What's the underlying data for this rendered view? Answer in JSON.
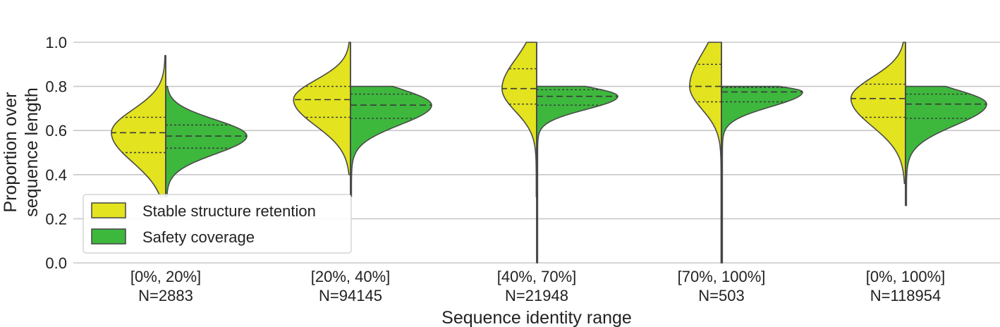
{
  "chart_data": {
    "type": "violin",
    "ylabel_lines": [
      "Proportion over",
      "sequence length"
    ],
    "xlabel": "Sequence identity range",
    "ylim": [
      0.0,
      1.0
    ],
    "yticks": [
      "0.0",
      "0.2",
      "0.4",
      "0.6",
      "0.8",
      "1.0"
    ],
    "grid": "horizontal",
    "legend_position": "lower-left",
    "categories": [
      {
        "range": "[0%, 20%]",
        "n": "N=2883"
      },
      {
        "range": "[20%, 40%]",
        "n": "N=94145"
      },
      {
        "range": "[40%, 70%]",
        "n": "N=21948"
      },
      {
        "range": "[70%, 100%]",
        "n": "N=503"
      },
      {
        "range": "[0%, 100%]",
        "n": "N=118954"
      }
    ],
    "series": [
      {
        "name": "Stable structure retention",
        "color": "#e3e31f",
        "side": "left",
        "quartiles": [
          [
            0.5,
            0.59,
            0.66
          ],
          [
            0.66,
            0.74,
            0.8
          ],
          [
            0.72,
            0.79,
            0.88
          ],
          [
            0.73,
            0.8,
            0.9
          ],
          [
            0.66,
            0.745,
            0.81
          ]
        ],
        "range": [
          [
            0.3,
            0.94
          ],
          [
            0.4,
            1.0
          ],
          [
            0.3,
            1.0
          ],
          [
            0.0,
            1.0
          ],
          [
            0.36,
            1.0
          ]
        ]
      },
      {
        "name": "Safety coverage",
        "color": "#3db83d",
        "side": "right",
        "quartiles": [
          [
            0.52,
            0.575,
            0.625
          ],
          [
            0.655,
            0.715,
            0.765
          ],
          [
            0.715,
            0.755,
            0.785
          ],
          [
            0.73,
            0.775,
            0.795
          ],
          [
            0.655,
            0.72,
            0.765
          ]
        ],
        "range": [
          [
            0.3,
            0.8
          ],
          [
            0.3,
            0.8
          ],
          [
            0.0,
            0.8
          ],
          [
            0.0,
            0.8
          ],
          [
            0.26,
            0.8
          ]
        ]
      }
    ]
  }
}
